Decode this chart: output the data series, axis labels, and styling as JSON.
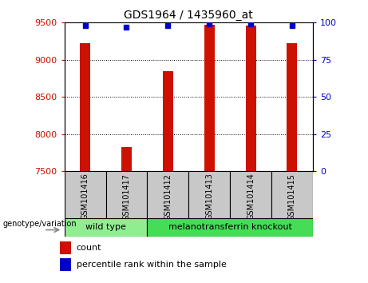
{
  "title": "GDS1964 / 1435960_at",
  "samples": [
    "GSM101416",
    "GSM101417",
    "GSM101412",
    "GSM101413",
    "GSM101414",
    "GSM101415"
  ],
  "counts": [
    9225,
    7830,
    8850,
    9470,
    9460,
    9225
  ],
  "percentile_ranks": [
    98,
    97,
    98,
    99,
    99,
    98
  ],
  "ylim_left": [
    7500,
    9500
  ],
  "ylim_right": [
    0,
    100
  ],
  "yticks_left": [
    7500,
    8000,
    8500,
    9000,
    9500
  ],
  "yticks_right": [
    0,
    25,
    50,
    75,
    100
  ],
  "groups": [
    {
      "label": "wild type",
      "n_cols": 2,
      "color": "#90EE90"
    },
    {
      "label": "melanotransferrin knockout",
      "n_cols": 4,
      "color": "#44DD55"
    }
  ],
  "bar_color": "#CC1100",
  "percentile_color": "#0000CC",
  "bar_width": 0.25,
  "background_color": "#ffffff",
  "plot_bg_color": "#ffffff",
  "left_label_color": "#CC1100",
  "right_label_color": "#0000CC",
  "sample_box_color": "#C8C8C8",
  "genotype_label": "genotype/variation",
  "legend_count_label": "count",
  "legend_pct_label": "percentile rank within the sample"
}
